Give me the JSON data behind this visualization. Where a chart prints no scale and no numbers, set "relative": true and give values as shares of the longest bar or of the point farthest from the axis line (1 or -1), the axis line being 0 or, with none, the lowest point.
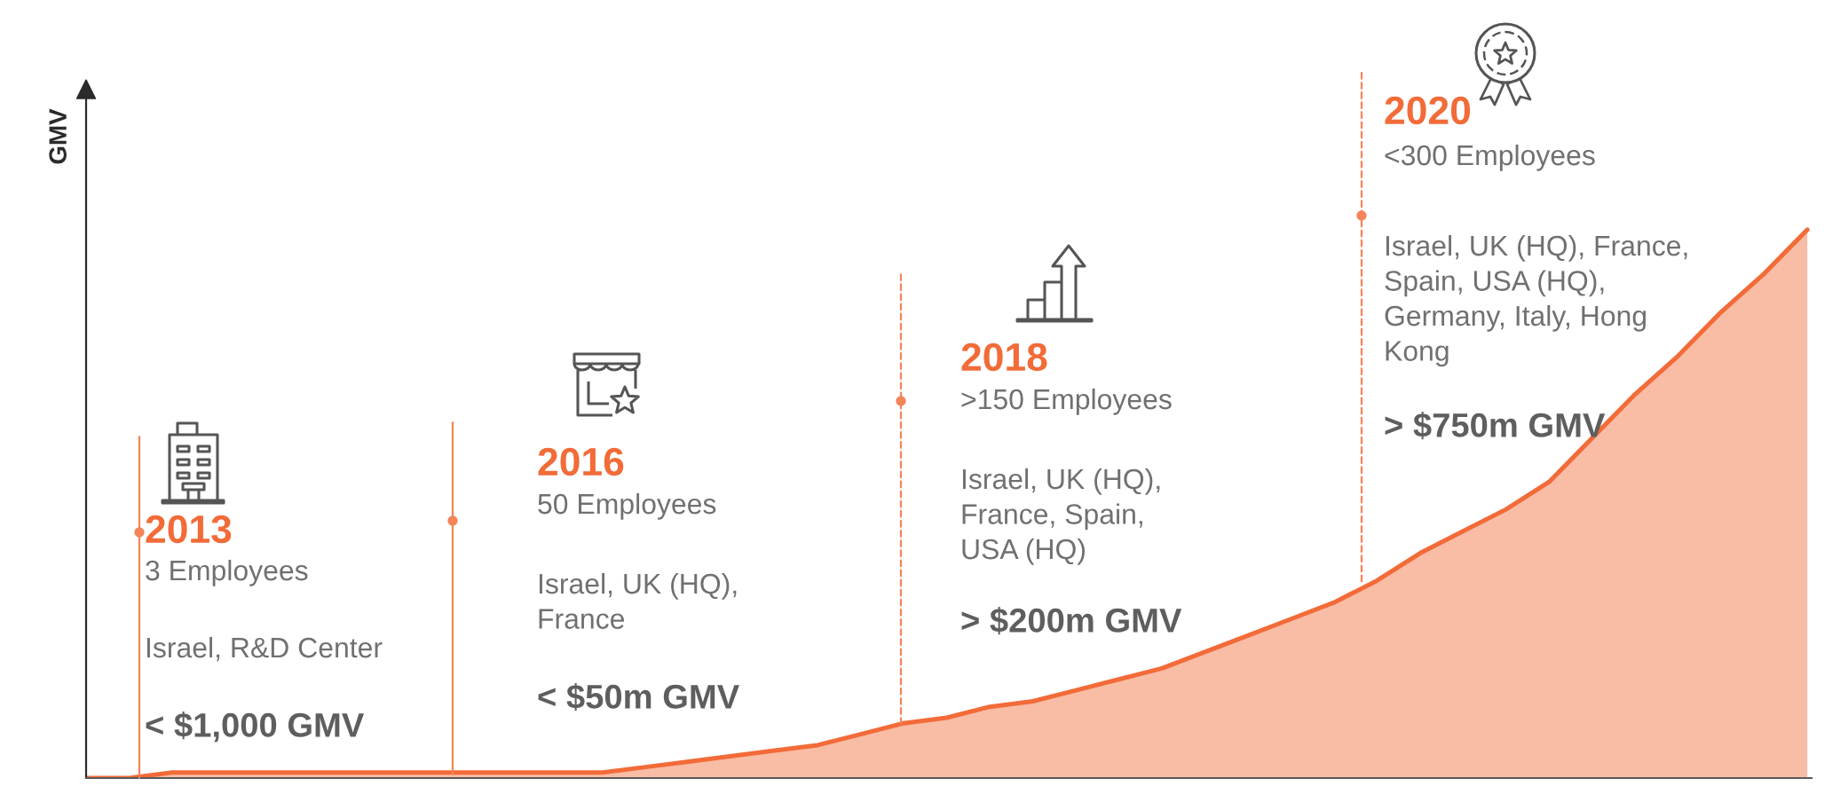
{
  "chart_data": {
    "type": "area",
    "ylabel": "GMV",
    "relative": true,
    "tick_labels": false,
    "categories": [
      null,
      null,
      null,
      null,
      null,
      null,
      null,
      null,
      null,
      null,
      null,
      null,
      null,
      null,
      null,
      null,
      null,
      null,
      null,
      null,
      null,
      null,
      null,
      null,
      null,
      null,
      null,
      null,
      null,
      null,
      null,
      null,
      null,
      null,
      null,
      null,
      null,
      null,
      null,
      null,
      null
    ],
    "series": [
      {
        "color": "#f26b38",
        "values": [
          0,
          0,
          0.01,
          0.01,
          0.01,
          0.01,
          0.01,
          0.01,
          0.01,
          0.01,
          0.01,
          0.01,
          0.01,
          0.02,
          0.03,
          0.04,
          0.05,
          0.06,
          0.08,
          0.1,
          0.11,
          0.13,
          0.14,
          0.16,
          0.18,
          0.2,
          0.23,
          0.26,
          0.29,
          0.32,
          0.36,
          0.41,
          0.45,
          0.49,
          0.54,
          0.62,
          0.7,
          0.77,
          0.85,
          0.92,
          1
        ]
      }
    ],
    "annotations": [
      "2013",
      "3 Employees",
      "Israel, R&D Center",
      "< $1,000 GMV",
      "2016",
      "50 Employees",
      "Israel, UK (HQ),\nFrance",
      "< $50m GMV",
      "2018",
      ">150 Employees",
      "Israel, UK (HQ),\nFrance, Spain,\nUSA (HQ)",
      "> $200m GMV",
      "2020",
      "<300 Employees",
      "Israel, UK (HQ), France,\nSpain, USA (HQ),\nGermany, Italy, Hong\nKong",
      "> $750m GMV"
    ]
  }
}
